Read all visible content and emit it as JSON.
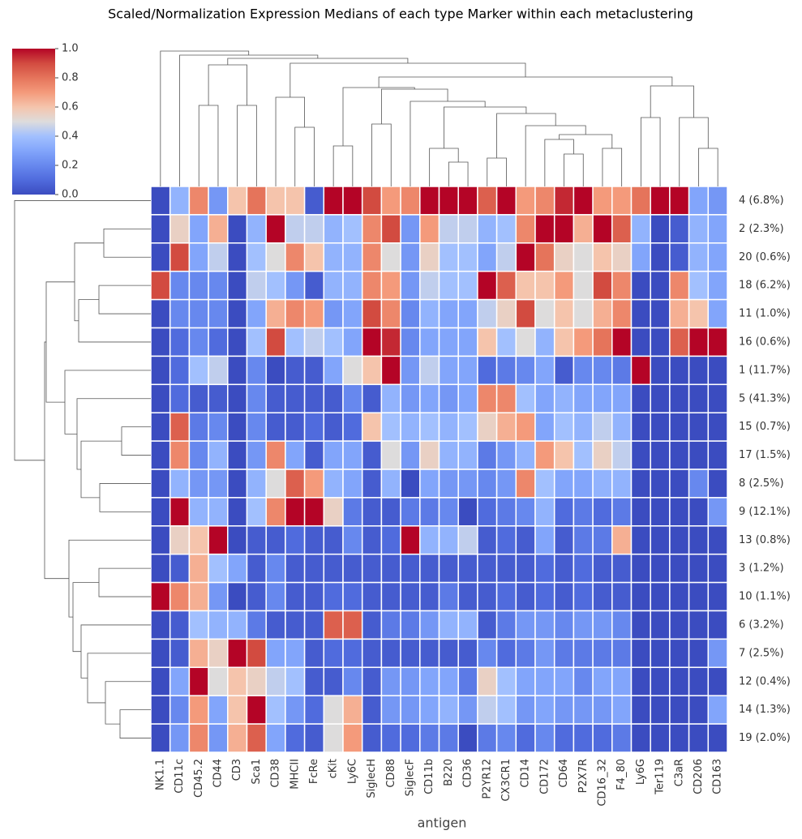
{
  "chart_data": {
    "type": "heatmap",
    "title": "Scaled/Normalization Expression Medians of each type Marker within each metaclustering",
    "xlabel": "antigen",
    "x": [
      "NK1.1",
      "CD11c",
      "CD45.2",
      "CD44",
      "CD3",
      "Sca1",
      "CD38",
      "MHCII",
      "FcRe",
      "cKit",
      "Ly6C",
      "SiglecH",
      "CD88",
      "SiglecF",
      "CD11b",
      "B220",
      "CD36",
      "P2YR12",
      "CX3CR1",
      "CD14",
      "CD172",
      "CD64",
      "P2X7R",
      "CD16_32",
      "F4_80",
      "Ly6G",
      "Ter119",
      "C3aR",
      "CD206",
      "CD163"
    ],
    "y": [
      "4 (6.8%)",
      "2 (2.3%)",
      "20 (0.6%)",
      "18 (6.2%)",
      "11 (1.0%)",
      "16 (0.6%)",
      "1 (11.7%)",
      "5 (41.3%)",
      "15 (0.7%)",
      "17 (1.5%)",
      "8 (2.5%)",
      "9 (12.1%)",
      "13 (0.8%)",
      "3 (1.2%)",
      "10 (1.1%)",
      "6 (3.2%)",
      "7 (2.5%)",
      "12 (0.4%)",
      "14 (1.3%)",
      "19 (2.0%)"
    ],
    "values": [
      [
        0,
        0.35,
        0.75,
        0.25,
        0.6,
        0.8,
        0.6,
        0.6,
        0.05,
        1,
        1,
        0.9,
        0.7,
        0.75,
        1,
        1,
        1,
        0.85,
        1,
        0.7,
        0.75,
        0.95,
        1,
        0.7,
        0.7,
        0.8,
        1,
        1,
        0.3,
        0.25
      ],
      [
        0,
        0.55,
        0.3,
        0.65,
        0,
        0.35,
        1,
        0.45,
        0.45,
        0.35,
        0.4,
        0.75,
        0.9,
        0.25,
        0.7,
        0.45,
        0.45,
        0.35,
        0.4,
        0.75,
        1,
        1,
        0.65,
        1,
        0.85,
        0.35,
        0,
        0.05,
        0.35,
        0.3
      ],
      [
        0,
        0.9,
        0.3,
        0.45,
        0,
        0.4,
        0.5,
        0.75,
        0.6,
        0.35,
        0.35,
        0.75,
        0.5,
        0.25,
        0.55,
        0.4,
        0.4,
        0.3,
        0.45,
        1,
        0.8,
        0.55,
        0.5,
        0.6,
        0.55,
        0.3,
        0,
        0.05,
        0.35,
        0.3
      ],
      [
        0.9,
        0.2,
        0.2,
        0.2,
        0,
        0.45,
        0.4,
        0.25,
        0.05,
        0.35,
        0.35,
        0.75,
        0.7,
        0.25,
        0.45,
        0.4,
        0.4,
        1,
        0.85,
        0.6,
        0.6,
        0.7,
        0.5,
        0.9,
        0.75,
        0,
        0,
        0.75,
        0.4,
        0.3
      ],
      [
        0,
        0.2,
        0.2,
        0.2,
        0,
        0.3,
        0.65,
        0.75,
        0.7,
        0.25,
        0.3,
        0.9,
        0.75,
        0.2,
        0.35,
        0.3,
        0.3,
        0.45,
        0.55,
        0.9,
        0.5,
        0.6,
        0.5,
        0.65,
        0.75,
        0,
        0,
        0.65,
        0.6,
        0.3
      ],
      [
        0,
        0.1,
        0.2,
        0.1,
        0,
        0.4,
        0.9,
        0.4,
        0.45,
        0.4,
        0.3,
        1,
        0.95,
        0.2,
        0.3,
        0.3,
        0.3,
        0.6,
        0.4,
        0.5,
        0.35,
        0.6,
        0.7,
        0.8,
        1,
        0,
        0,
        0.85,
        1,
        1
      ],
      [
        0,
        0.1,
        0.4,
        0.45,
        0,
        0.2,
        0,
        0.05,
        0.05,
        0.3,
        0.5,
        0.6,
        1,
        0.25,
        0.45,
        0.3,
        0.3,
        0.1,
        0.15,
        0.2,
        0.3,
        0.05,
        0.2,
        0.2,
        0.15,
        1,
        0,
        0,
        0,
        0
      ],
      [
        0,
        0.1,
        0.05,
        0.05,
        0,
        0.2,
        0.05,
        0.05,
        0.05,
        0.05,
        0.2,
        0.05,
        0.35,
        0.25,
        0.3,
        0.25,
        0.3,
        0.75,
        0.75,
        0.4,
        0.3,
        0.35,
        0.3,
        0.3,
        0.3,
        0,
        0,
        0,
        0,
        0
      ],
      [
        0,
        0.85,
        0.15,
        0.2,
        0,
        0.2,
        0.05,
        0.05,
        0.1,
        0.05,
        0.1,
        0.6,
        0.4,
        0.35,
        0.4,
        0.35,
        0.4,
        0.55,
        0.65,
        0.7,
        0.3,
        0.4,
        0.35,
        0.45,
        0.35,
        0,
        0,
        0,
        0,
        0
      ],
      [
        0,
        0.75,
        0.2,
        0.35,
        0,
        0.25,
        0.75,
        0.3,
        0.05,
        0.3,
        0.3,
        0.05,
        0.5,
        0.25,
        0.55,
        0.35,
        0.35,
        0.15,
        0.25,
        0.35,
        0.7,
        0.6,
        0.4,
        0.55,
        0.45,
        0,
        0,
        0,
        0,
        0
      ],
      [
        0,
        0.35,
        0.25,
        0.25,
        0,
        0.35,
        0.5,
        0.85,
        0.7,
        0.35,
        0.3,
        0.05,
        0.35,
        0,
        0.3,
        0.25,
        0.25,
        0.2,
        0.25,
        0.75,
        0.4,
        0.3,
        0.3,
        0.35,
        0.35,
        0,
        0,
        0,
        0.2,
        0
      ],
      [
        0,
        1,
        0.35,
        0.35,
        0,
        0.4,
        0.75,
        1,
        1,
        0.55,
        0.15,
        0.05,
        0.05,
        0.15,
        0.15,
        0.2,
        0,
        0.1,
        0.15,
        0.2,
        0.35,
        0.1,
        0.15,
        0.1,
        0.15,
        0,
        0,
        0,
        0,
        0.25
      ],
      [
        0,
        0.55,
        0.6,
        1,
        0,
        0.05,
        0.05,
        0.1,
        0.05,
        0.05,
        0.2,
        0.05,
        0.1,
        1,
        0.35,
        0.35,
        0.45,
        0.05,
        0.1,
        0.05,
        0.3,
        0.05,
        0.15,
        0.15,
        0.65,
        0,
        0,
        0,
        0,
        0
      ],
      [
        0,
        0.05,
        0.65,
        0.4,
        0.3,
        0.05,
        0.2,
        0.05,
        0.05,
        0.05,
        0.05,
        0.05,
        0.05,
        0.05,
        0.05,
        0.05,
        0.05,
        0.05,
        0.05,
        0.05,
        0.1,
        0.05,
        0.1,
        0.05,
        0.05,
        0,
        0,
        0,
        0,
        0
      ],
      [
        1,
        0.75,
        0.65,
        0.25,
        0,
        0.05,
        0.2,
        0.05,
        0.05,
        0.1,
        0.1,
        0.05,
        0.05,
        0.05,
        0.05,
        0.15,
        0.05,
        0.05,
        0.1,
        0.05,
        0.1,
        0.05,
        0.1,
        0.05,
        0.05,
        0,
        0,
        0,
        0,
        0
      ],
      [
        0,
        0.05,
        0.4,
        0.35,
        0.35,
        0.15,
        0.05,
        0.05,
        0.05,
        0.85,
        0.85,
        0.05,
        0.15,
        0.15,
        0.25,
        0.35,
        0.35,
        0.05,
        0.15,
        0.25,
        0.25,
        0.2,
        0.25,
        0.25,
        0.2,
        0,
        0,
        0,
        0,
        0
      ],
      [
        0,
        0.05,
        0.65,
        0.55,
        1,
        0.9,
        0.3,
        0.3,
        0.05,
        0.1,
        0.1,
        0.05,
        0.05,
        0.05,
        0.05,
        0.05,
        0.05,
        0.2,
        0.1,
        0.15,
        0.25,
        0.15,
        0.15,
        0.15,
        0.15,
        0,
        0,
        0,
        0,
        0.25
      ],
      [
        0,
        0.3,
        1,
        0.5,
        0.6,
        0.55,
        0.45,
        0.4,
        0.05,
        0.05,
        0.2,
        0.05,
        0.25,
        0.25,
        0.3,
        0.3,
        0.15,
        0.55,
        0.4,
        0.3,
        0.3,
        0.3,
        0.2,
        0.3,
        0.3,
        0,
        0,
        0,
        0,
        0
      ],
      [
        0,
        0.2,
        0.7,
        0.3,
        0.6,
        1,
        0.4,
        0.25,
        0.1,
        0.5,
        0.65,
        0.05,
        0.25,
        0.25,
        0.3,
        0.35,
        0.25,
        0.45,
        0.4,
        0.25,
        0.3,
        0.25,
        0.25,
        0.25,
        0.3,
        0,
        0,
        0,
        0,
        0.3
      ],
      [
        0,
        0.25,
        0.75,
        0.25,
        0.65,
        0.85,
        0.3,
        0.1,
        0.05,
        0.5,
        0.7,
        0.05,
        0.1,
        0.1,
        0.15,
        0.15,
        0,
        0.15,
        0.2,
        0.1,
        0.2,
        0.1,
        0.1,
        0.1,
        0.15,
        0,
        0,
        0,
        0,
        0
      ]
    ],
    "colormap": "coolwarm",
    "clim": [
      0,
      1
    ],
    "cticks": [
      {
        "value": 0,
        "label": "0.0"
      },
      {
        "value": 0.2,
        "label": "0.2"
      },
      {
        "value": 0.4,
        "label": "0.4"
      },
      {
        "value": 0.6,
        "label": "0.6"
      },
      {
        "value": 0.8,
        "label": "0.8"
      },
      {
        "value": 1,
        "label": "1.0"
      }
    ]
  }
}
